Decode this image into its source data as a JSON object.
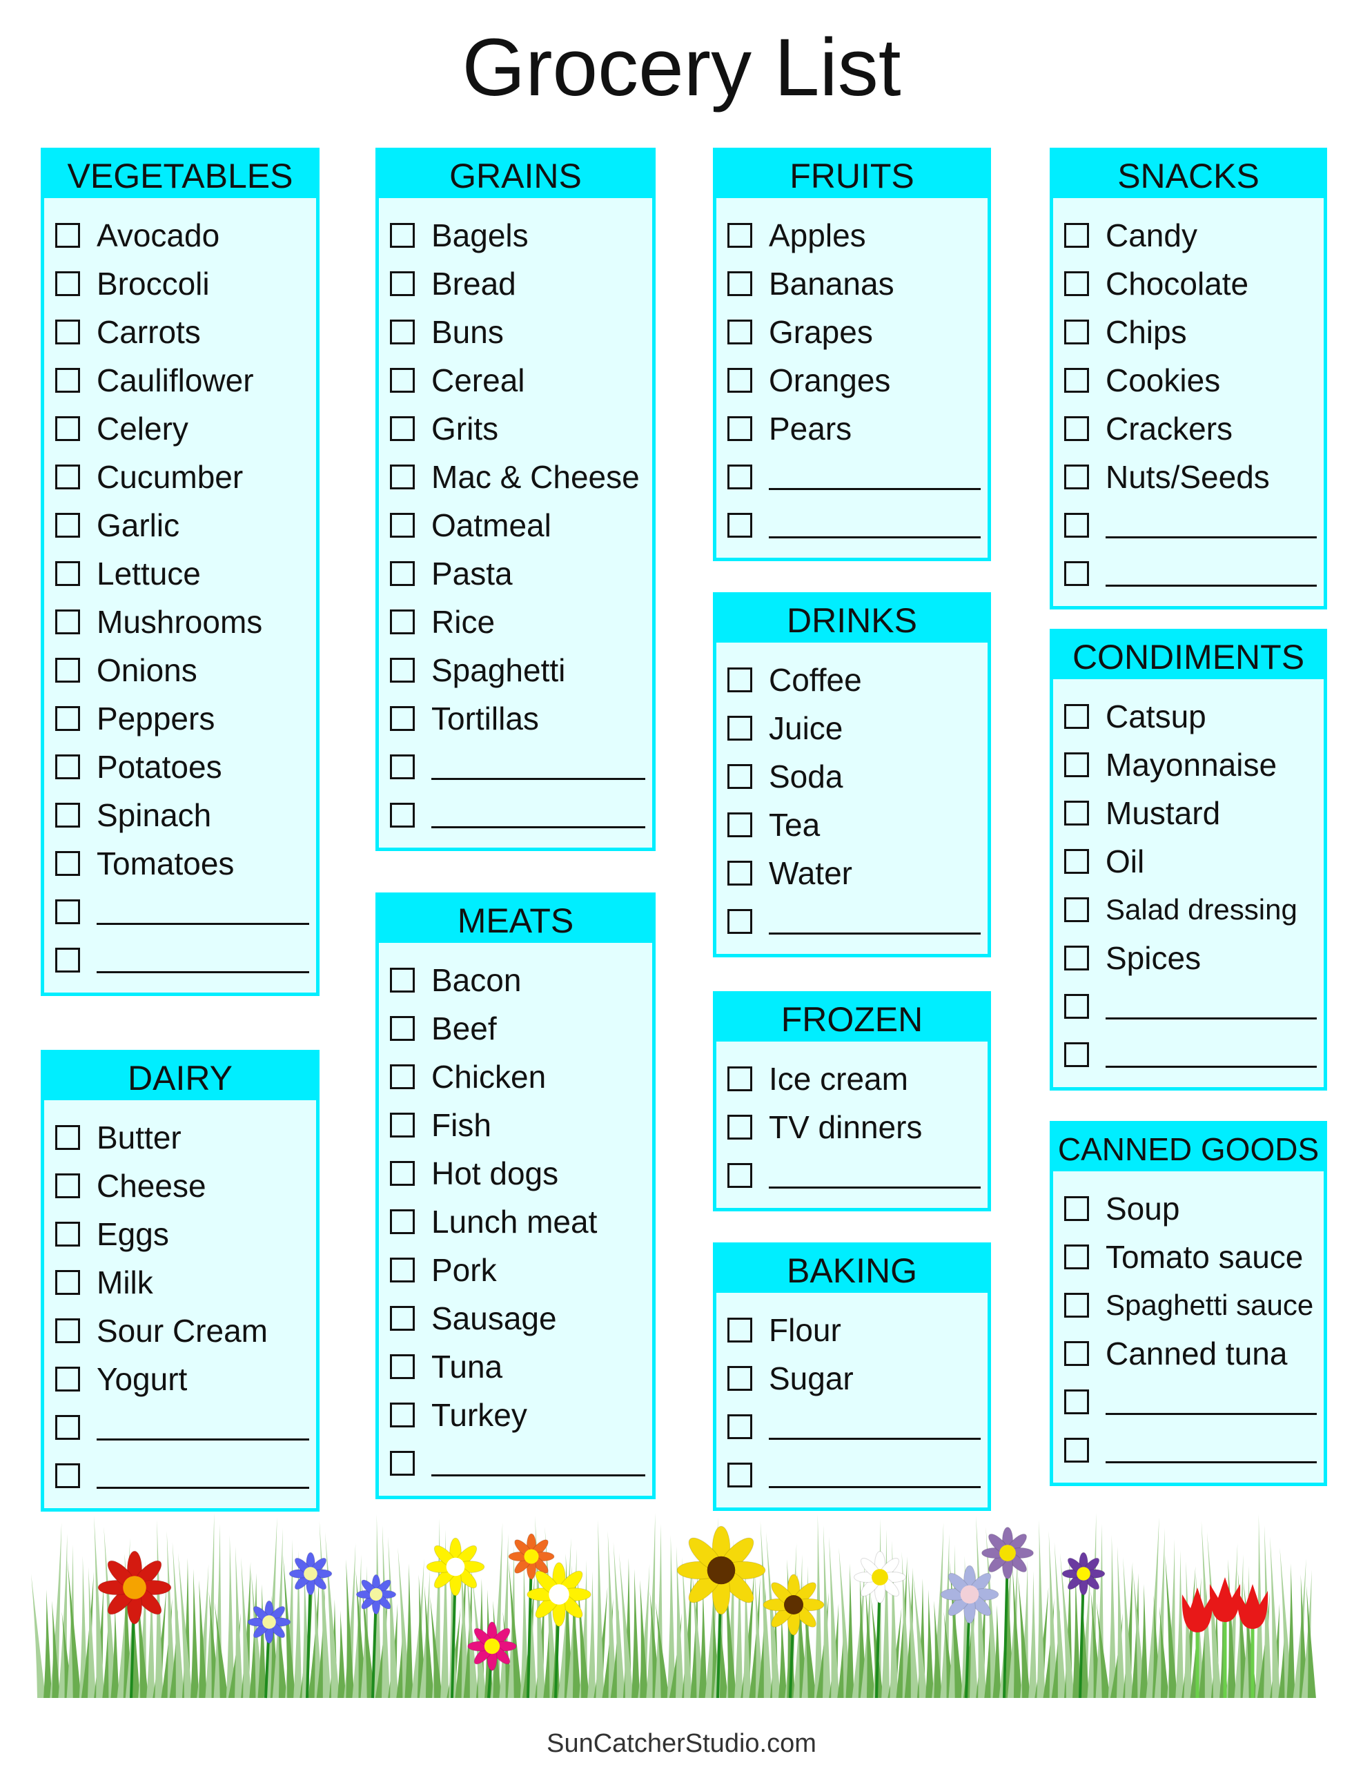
{
  "title": "Grocery List",
  "footer": "SunCatcherStudio.com",
  "colors": {
    "header": "#00eeff",
    "panel": "#e3ffff",
    "border": "#00eeff"
  },
  "icons": {
    "checkbox": "empty-checkbox-icon",
    "decoration": "flower-garden-illustration"
  },
  "sections": [
    {
      "id": "vegetables",
      "title": "VEGETABLES",
      "items": [
        "Avocado",
        "Broccoli",
        "Carrots",
        "Cauliflower",
        "Celery",
        "Cucumber",
        "Garlic",
        "Lettuce",
        "Mushrooms",
        "Onions",
        "Peppers",
        "Potatoes",
        "Spinach",
        "Tomatoes",
        "",
        ""
      ]
    },
    {
      "id": "dairy",
      "title": "DAIRY",
      "items": [
        "Butter",
        "Cheese",
        "Eggs",
        "Milk",
        "Sour Cream",
        "Yogurt",
        "",
        ""
      ]
    },
    {
      "id": "grains",
      "title": "GRAINS",
      "items": [
        "Bagels",
        "Bread",
        "Buns",
        "Cereal",
        "Grits",
        "Mac & Cheese",
        "Oatmeal",
        "Pasta",
        "Rice",
        "Spaghetti",
        "Tortillas",
        "",
        ""
      ]
    },
    {
      "id": "meats",
      "title": "MEATS",
      "items": [
        "Bacon",
        "Beef",
        "Chicken",
        "Fish",
        "Hot dogs",
        "Lunch meat",
        "Pork",
        "Sausage",
        "Tuna",
        "Turkey",
        ""
      ]
    },
    {
      "id": "fruits",
      "title": "FRUITS",
      "items": [
        "Apples",
        "Bananas",
        "Grapes",
        "Oranges",
        "Pears",
        "",
        ""
      ]
    },
    {
      "id": "drinks",
      "title": "DRINKS",
      "items": [
        "Coffee",
        "Juice",
        "Soda",
        "Tea",
        "Water",
        ""
      ]
    },
    {
      "id": "frozen",
      "title": "FROZEN",
      "items": [
        "Ice cream",
        "TV dinners",
        ""
      ]
    },
    {
      "id": "baking",
      "title": "BAKING",
      "items": [
        "Flour",
        "Sugar",
        "",
        ""
      ]
    },
    {
      "id": "snacks",
      "title": "SNACKS",
      "items": [
        "Candy",
        "Chocolate",
        "Chips",
        "Cookies",
        "Crackers",
        "Nuts/Seeds",
        "",
        ""
      ]
    },
    {
      "id": "condiments",
      "title": "CONDIMENTS",
      "items": [
        "Catsup",
        "Mayonnaise",
        "Mustard",
        "Oil",
        "Salad dressing",
        "Spices",
        "",
        ""
      ]
    },
    {
      "id": "canned-goods",
      "title": "CANNED GOODS",
      "items": [
        "Soup",
        "Tomato sauce",
        "Spaghetti sauce",
        "Canned tuna",
        "",
        ""
      ]
    }
  ]
}
